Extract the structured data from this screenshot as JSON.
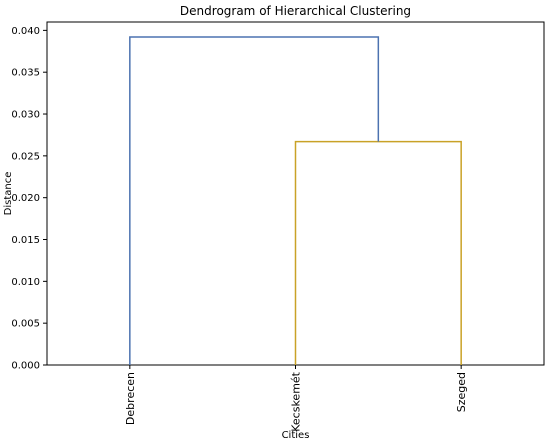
{
  "chart_data": {
    "type": "dendrogram",
    "title": "Dendrogram of Hierarchical Clustering",
    "xlabel": "Cities",
    "ylabel": "Distance",
    "leaves": [
      "Debrecen",
      "Kecskemét",
      "Szeged"
    ],
    "ylim": [
      0,
      0.041
    ],
    "yticks": [
      0.0,
      0.005,
      0.01,
      0.015,
      0.02,
      0.025,
      0.03,
      0.035,
      0.04
    ],
    "ytick_labels": [
      "0.000",
      "0.005",
      "0.010",
      "0.015",
      "0.020",
      "0.025",
      "0.030",
      "0.035",
      "0.040"
    ],
    "links": [
      {
        "left": "Kecskemét",
        "right": "Szeged",
        "height": 0.0267,
        "color": "#c9a227"
      },
      {
        "left": "Debrecen",
        "right": "Kecskemét+Szeged",
        "height": 0.0392,
        "color": "#4c72b0"
      }
    ],
    "grid": false,
    "legend": "none"
  }
}
